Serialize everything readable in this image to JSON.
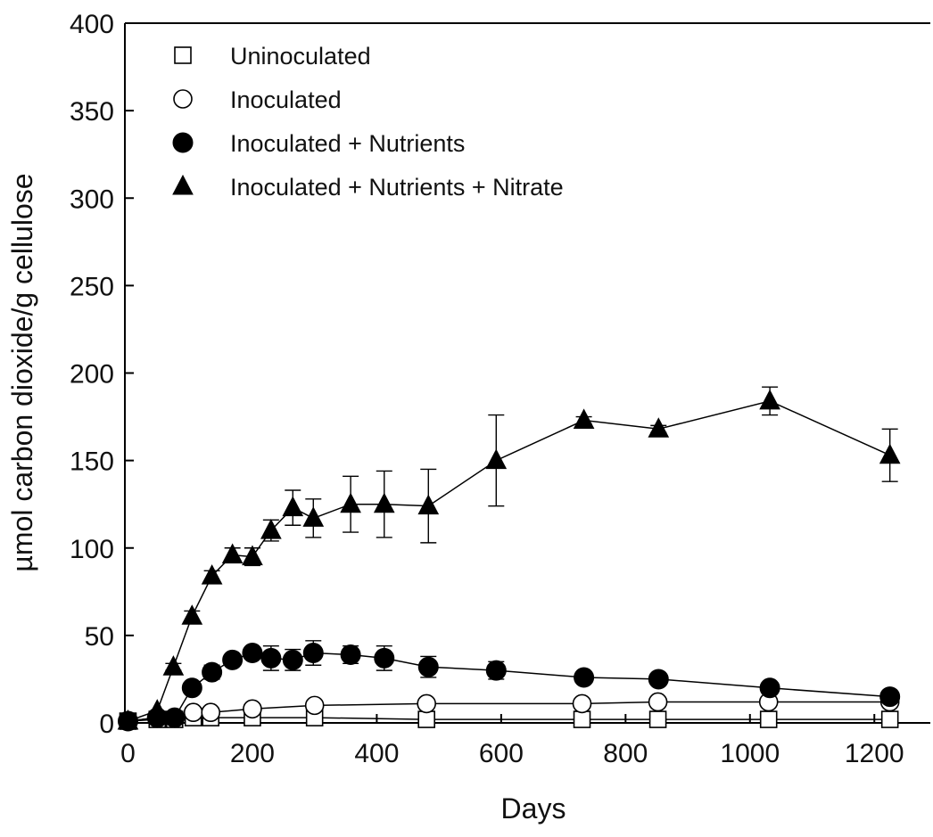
{
  "chart_data": {
    "type": "line",
    "xlabel": "Days",
    "ylabel": "µmol carbon dioxide/g cellulose",
    "xlim": [
      -5,
      1290
    ],
    "ylim": [
      0,
      400
    ],
    "xticks": [
      0,
      200,
      400,
      600,
      800,
      1000,
      1200
    ],
    "yticks": [
      0,
      50,
      100,
      150,
      200,
      250,
      300,
      350,
      400
    ],
    "legend_position": "top-left",
    "grid": false,
    "series": [
      {
        "name": "Uninoculated",
        "marker": "square-open",
        "points": [
          {
            "x": 0,
            "y": 1
          },
          {
            "x": 47,
            "y": 2
          },
          {
            "x": 75,
            "y": 2
          },
          {
            "x": 105,
            "y": 3
          },
          {
            "x": 133,
            "y": 3
          },
          {
            "x": 200,
            "y": 3
          },
          {
            "x": 300,
            "y": 3
          },
          {
            "x": 480,
            "y": 2
          },
          {
            "x": 730,
            "y": 2
          },
          {
            "x": 852,
            "y": 2
          },
          {
            "x": 1030,
            "y": 2
          },
          {
            "x": 1225,
            "y": 2
          }
        ]
      },
      {
        "name": "Inoculated",
        "marker": "circle-open",
        "points": [
          {
            "x": 0,
            "y": 1
          },
          {
            "x": 47,
            "y": 3
          },
          {
            "x": 75,
            "y": 3
          },
          {
            "x": 105,
            "y": 6
          },
          {
            "x": 133,
            "y": 6
          },
          {
            "x": 200,
            "y": 8
          },
          {
            "x": 300,
            "y": 10
          },
          {
            "x": 480,
            "y": 11
          },
          {
            "x": 730,
            "y": 11
          },
          {
            "x": 852,
            "y": 12
          },
          {
            "x": 1030,
            "y": 12
          },
          {
            "x": 1225,
            "y": 12
          }
        ]
      },
      {
        "name": "Inoculated + Nutrients",
        "marker": "circle-filled",
        "points": [
          {
            "x": 0,
            "y": 1,
            "err": 0
          },
          {
            "x": 47,
            "y": 3,
            "err": 0
          },
          {
            "x": 75,
            "y": 3,
            "err": 0
          },
          {
            "x": 103,
            "y": 20,
            "err": 3
          },
          {
            "x": 135,
            "y": 29,
            "err": 4
          },
          {
            "x": 168,
            "y": 36,
            "err": 3
          },
          {
            "x": 200,
            "y": 40,
            "err": 3
          },
          {
            "x": 230,
            "y": 37,
            "err": 7
          },
          {
            "x": 265,
            "y": 36,
            "err": 6
          },
          {
            "x": 298,
            "y": 40,
            "err": 7
          },
          {
            "x": 358,
            "y": 39,
            "err": 5
          },
          {
            "x": 412,
            "y": 37,
            "err": 7
          },
          {
            "x": 483,
            "y": 32,
            "err": 6
          },
          {
            "x": 592,
            "y": 30,
            "err": 5
          },
          {
            "x": 733,
            "y": 26,
            "err": 3
          },
          {
            "x": 853,
            "y": 25,
            "err": 3
          },
          {
            "x": 1032,
            "y": 20,
            "err": 2
          },
          {
            "x": 1225,
            "y": 15,
            "err": 3
          }
        ]
      },
      {
        "name": "Inoculated + Nutrients + Nitrate",
        "marker": "triangle-filled",
        "points": [
          {
            "x": 0,
            "y": 1,
            "err": 0
          },
          {
            "x": 47,
            "y": 7,
            "err": 0
          },
          {
            "x": 73,
            "y": 32,
            "err": 2
          },
          {
            "x": 103,
            "y": 61,
            "err": 3
          },
          {
            "x": 135,
            "y": 84,
            "err": 3
          },
          {
            "x": 168,
            "y": 96,
            "err": 4
          },
          {
            "x": 200,
            "y": 95,
            "err": 5
          },
          {
            "x": 230,
            "y": 110,
            "err": 6
          },
          {
            "x": 265,
            "y": 123,
            "err": 10
          },
          {
            "x": 298,
            "y": 117,
            "err": 11
          },
          {
            "x": 358,
            "y": 125,
            "err": 16
          },
          {
            "x": 412,
            "y": 125,
            "err": 19
          },
          {
            "x": 483,
            "y": 124,
            "err": 21
          },
          {
            "x": 592,
            "y": 150,
            "err": 26
          },
          {
            "x": 733,
            "y": 173,
            "err": 2
          },
          {
            "x": 853,
            "y": 168,
            "err": 2
          },
          {
            "x": 1032,
            "y": 184,
            "err": 8
          },
          {
            "x": 1225,
            "y": 153,
            "err": 15
          }
        ]
      }
    ]
  }
}
